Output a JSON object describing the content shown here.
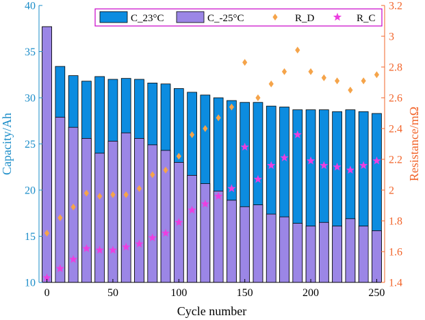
{
  "chart_data": {
    "type": "bar",
    "xlabel": "Cycle number",
    "ylabel": "Capacity/Ah",
    "y2label": "Resistance/mΩ",
    "xlim": [
      -6,
      256
    ],
    "ylim": [
      10,
      40
    ],
    "y2lim": [
      1.4,
      3.2
    ],
    "xticks": [
      "0",
      "50",
      "100",
      "150",
      "200",
      "250"
    ],
    "yticks": [
      "10",
      "15",
      "20",
      "25",
      "30",
      "35",
      "40"
    ],
    "y2ticks": [
      "1.4",
      "1.6",
      "1.8",
      "2",
      "2.2",
      "2.4",
      "2.6",
      "2.8",
      "3",
      "3.2"
    ],
    "legend_position": "top",
    "grid": false,
    "x": [
      0,
      10,
      20,
      30,
      40,
      50,
      60,
      70,
      80,
      90,
      100,
      110,
      120,
      130,
      140,
      150,
      160,
      170,
      180,
      190,
      200,
      210,
      220,
      230,
      240,
      250
    ],
    "bar_series": [
      {
        "name": "C_23°C",
        "axis": "left",
        "color": "#0c8ce0",
        "values": [
          37.7,
          33.4,
          32.4,
          31.8,
          32.3,
          32.0,
          32.1,
          32.0,
          31.6,
          31.5,
          31.0,
          30.6,
          30.3,
          30.0,
          29.7,
          29.5,
          29.5,
          29.1,
          29.0,
          28.7,
          28.7,
          28.7,
          28.5,
          28.7,
          28.5,
          28.3
        ]
      },
      {
        "name": "C_-25°C",
        "axis": "left",
        "color": "#9b86e6",
        "values": [
          37.7,
          27.9,
          26.8,
          25.6,
          24.0,
          25.3,
          26.2,
          25.6,
          24.9,
          24.3,
          23.0,
          21.6,
          20.7,
          19.9,
          18.9,
          18.2,
          18.4,
          17.4,
          17.1,
          16.4,
          16.1,
          16.5,
          16.1,
          16.9,
          16.1,
          15.6
        ]
      }
    ],
    "scatter_series": [
      {
        "name": "R_D",
        "axis": "right",
        "marker": "diamond",
        "color": "#f5a44a",
        "x": [
          0,
          10,
          20,
          30,
          40,
          50,
          60,
          70,
          80,
          90,
          100,
          110,
          120,
          130,
          140,
          150,
          160,
          170,
          180,
          190,
          200,
          210,
          220,
          230,
          240,
          250
        ],
        "values": [
          1.72,
          1.82,
          1.89,
          1.98,
          1.96,
          1.97,
          1.97,
          2.01,
          2.1,
          2.13,
          2.22,
          2.36,
          2.4,
          2.47,
          2.54,
          2.83,
          2.6,
          2.69,
          2.77,
          2.91,
          2.77,
          2.73,
          2.71,
          2.65,
          2.71,
          2.75
        ]
      },
      {
        "name": "R_C",
        "axis": "right",
        "marker": "star",
        "color": "#ec3ee0",
        "x": [
          0,
          10,
          20,
          30,
          40,
          50,
          60,
          70,
          80,
          90,
          100,
          110,
          120,
          130,
          140,
          150,
          160,
          170,
          180,
          190,
          200,
          210,
          220,
          230,
          240,
          250
        ],
        "values": [
          1.43,
          1.49,
          1.55,
          1.62,
          1.61,
          1.61,
          1.63,
          1.65,
          1.69,
          1.72,
          1.79,
          1.87,
          1.91,
          1.96,
          2.01,
          2.28,
          2.07,
          2.16,
          2.21,
          2.36,
          2.19,
          2.16,
          2.15,
          2.13,
          2.16,
          2.19
        ]
      }
    ],
    "colors": {
      "left_axis": "#1a8cc8",
      "right_axis": "#f2642a",
      "legend_border": "#c800c8",
      "bar_edge": "#000000",
      "axis_line": "#000000"
    }
  }
}
